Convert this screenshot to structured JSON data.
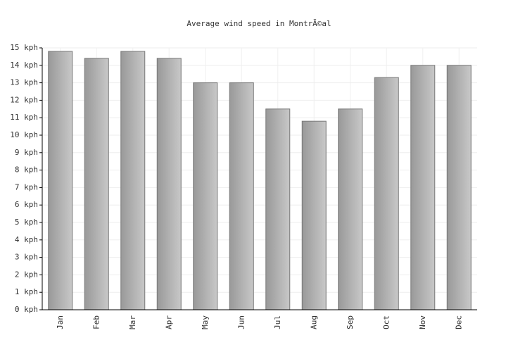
{
  "chart_data": {
    "type": "bar",
    "title": "Average wind speed in MontrÃ©al",
    "categories": [
      "Jan",
      "Feb",
      "Mar",
      "Apr",
      "May",
      "Jun",
      "Jul",
      "Aug",
      "Sep",
      "Oct",
      "Nov",
      "Dec"
    ],
    "values": [
      14.8,
      14.4,
      14.8,
      14.4,
      13.0,
      13.0,
      11.5,
      10.8,
      11.5,
      13.3,
      14.0,
      14.0
    ],
    "color": "#aaaaaa",
    "ylim": [
      0,
      15
    ],
    "yticks": [
      {
        "value": 0,
        "label": "0 kph"
      },
      {
        "value": 1,
        "label": "1 kph"
      },
      {
        "value": 2,
        "label": "2 kph"
      },
      {
        "value": 3,
        "label": "3 kph"
      },
      {
        "value": 4,
        "label": "4 kph"
      },
      {
        "value": 5,
        "label": "5 kph"
      },
      {
        "value": 6,
        "label": "6 kph"
      },
      {
        "value": 7,
        "label": "7 kph"
      },
      {
        "value": 8,
        "label": "8 kph"
      },
      {
        "value": 9,
        "label": "9 kph"
      },
      {
        "value": 10,
        "label": "10 kph"
      },
      {
        "value": 11,
        "label": "11 kph"
      },
      {
        "value": 12,
        "label": "12 kph"
      },
      {
        "value": 13,
        "label": "13 kph"
      },
      {
        "value": 14,
        "label": "14 kph"
      },
      {
        "value": 15,
        "label": "15 kph"
      }
    ],
    "grid": true
  }
}
